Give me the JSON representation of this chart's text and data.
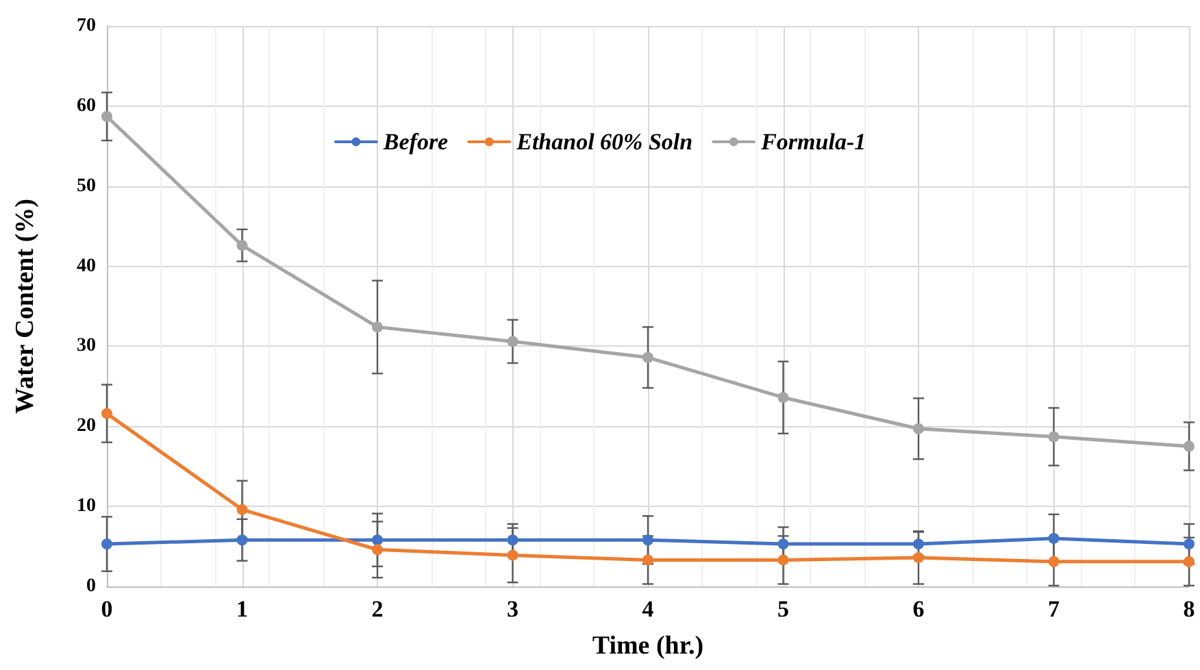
{
  "chart_data": {
    "type": "line",
    "xlabel": "Time (hr.)",
    "ylabel": "Water Content (%)",
    "x": [
      0,
      1,
      2,
      3,
      4,
      5,
      6,
      7,
      8
    ],
    "xlim": [
      0,
      8
    ],
    "xticks": [
      0,
      1,
      2,
      3,
      4,
      5,
      6,
      7,
      8
    ],
    "ylim": [
      0,
      70
    ],
    "yticks": [
      0,
      10,
      20,
      30,
      40,
      50,
      60,
      70
    ],
    "grid": true,
    "legend": "top",
    "marker": "circle",
    "line_style": "solid",
    "series": [
      {
        "name": "Before",
        "color": "#4472c4",
        "values": [
          5.3,
          5.8,
          5.8,
          5.8,
          5.8,
          5.3,
          5.3,
          6.0,
          5.3
        ],
        "errors": [
          3.4,
          2.6,
          3.3,
          2,
          3,
          2.1,
          1.5,
          3,
          2.5
        ]
      },
      {
        "name": "Ethanol 60% Soln",
        "color": "#ed7d31",
        "values": [
          21.6,
          9.6,
          4.6,
          3.9,
          3.3,
          3.3,
          3.6,
          3.1,
          3.1
        ],
        "errors": [
          3.6,
          3.6,
          3.5,
          3.4,
          3,
          3,
          3.3,
          3,
          3
        ]
      },
      {
        "name": "Formula-1",
        "color": "#a5a5a5",
        "values": [
          58.7,
          42.6,
          32.4,
          30.6,
          28.6,
          23.6,
          19.7,
          18.7,
          17.5
        ],
        "errors": [
          3,
          2,
          5.8,
          2.7,
          3.8,
          4.5,
          3.8,
          3.6,
          3
        ]
      }
    ]
  }
}
